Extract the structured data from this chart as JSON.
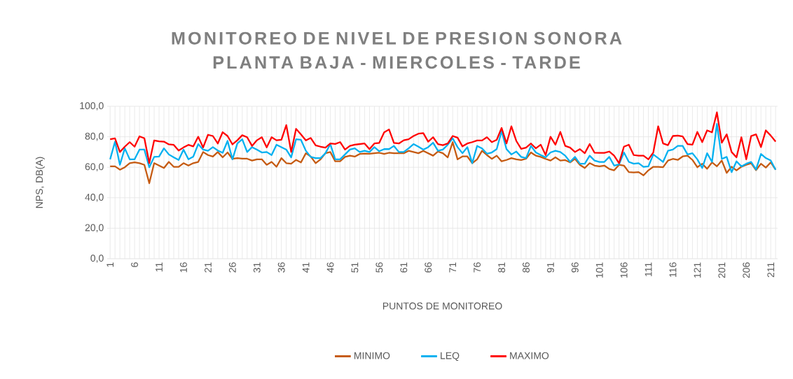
{
  "chart_data": {
    "type": "line",
    "title": "MONITOREO DE NIVEL DE PRESION SONORA PLANTA BAJA - MIERCOLES - TARDE",
    "xlabel": "PUNTOS DE MONITOREO",
    "ylabel": "NPS, DB(A)",
    "categories": [
      "1",
      null,
      null,
      null,
      null,
      "6",
      null,
      null,
      null,
      null,
      "11",
      null,
      null,
      null,
      null,
      "16",
      null,
      null,
      null,
      null,
      "21",
      null,
      null,
      null,
      null,
      "26",
      null,
      null,
      null,
      null,
      "31",
      null,
      null,
      null,
      null,
      "36",
      null,
      null,
      null,
      null,
      "41",
      null,
      null,
      null,
      null,
      "46",
      null,
      null,
      null,
      null,
      "51",
      null,
      null,
      null,
      null,
      "56",
      null,
      null,
      null,
      null,
      "61",
      null,
      null,
      null,
      null,
      "66",
      null,
      null,
      null,
      null,
      "71",
      null,
      null,
      null,
      null,
      "76",
      null,
      null,
      null,
      null,
      "81",
      null,
      null,
      null,
      null,
      "86",
      null,
      null,
      null,
      null,
      "91",
      null,
      null,
      null,
      null,
      "96",
      null,
      null,
      null,
      null,
      "101",
      null,
      null,
      null,
      null,
      "106",
      null,
      null,
      null,
      null,
      "111",
      null,
      null,
      null,
      null,
      "116",
      null,
      null,
      null,
      null,
      "121",
      null,
      null,
      null,
      null,
      "201",
      null,
      null,
      null,
      null,
      "206",
      null,
      null,
      null,
      null,
      "211",
      null
    ],
    "series": [
      {
        "name": "MINIMO",
        "color": "#c55a11",
        "values": [
          60.6,
          60.6,
          58.4,
          60,
          62.7,
          63.2,
          62.7,
          61.6,
          49.5,
          62.7,
          61.1,
          59.5,
          63.5,
          60.3,
          60.3,
          62.7,
          61.1,
          62.7,
          63.5,
          70,
          68,
          67,
          70,
          66.5,
          69.7,
          65.5,
          66,
          65.6,
          65.6,
          64.4,
          65.2,
          65.2,
          61.6,
          63.5,
          60.3,
          66,
          62.7,
          62.3,
          64.8,
          63.2,
          69.2,
          67,
          62.7,
          65.2,
          69.2,
          70,
          63.9,
          63.9,
          66.8,
          67.6,
          67,
          68.7,
          69,
          68.9,
          69.2,
          69.5,
          68.7,
          69.5,
          69.2,
          69.2,
          69.2,
          70.8,
          70,
          69.2,
          70.8,
          69.2,
          67.6,
          70.3,
          69.2,
          66.5,
          76.5,
          65.2,
          67.1,
          67.1,
          62.7,
          65.2,
          70.8,
          68,
          65.5,
          67.6,
          63.9,
          64.8,
          66,
          65.2,
          64.7,
          65.6,
          69.7,
          67.6,
          66.8,
          65.5,
          64.4,
          66.5,
          64.4,
          64.7,
          63.2,
          65.5,
          61.6,
          59.5,
          62.7,
          61.1,
          60.6,
          61.1,
          58.9,
          58,
          61.6,
          61.1,
          56.8,
          56.6,
          56.8,
          54.7,
          58,
          60.3,
          60.3,
          60,
          64.4,
          65.5,
          64.8,
          67.1,
          67.6,
          64.8,
          60,
          62.3,
          59,
          63.2,
          60.6,
          64.4,
          56.3,
          60.3,
          58,
          60.3,
          61.6,
          62.7,
          58.1,
          62.3,
          59.8,
          63.2,
          58.4
        ]
      },
      {
        "name": "LEQ",
        "color": "#00b0f0",
        "values": [
          65.2,
          76.8,
          61.6,
          72.4,
          65.2,
          65.2,
          71.6,
          71.6,
          60,
          66.8,
          67,
          72.4,
          68.4,
          66.5,
          64.8,
          71.6,
          65.2,
          67,
          75.2,
          71.6,
          70.8,
          73.2,
          71,
          69.5,
          77.3,
          65.2,
          75.6,
          78.4,
          70,
          73.2,
          71.6,
          69.7,
          70,
          68,
          74.8,
          73.2,
          71.6,
          66.5,
          78.4,
          78,
          70.8,
          66.8,
          66,
          66,
          69.2,
          75.2,
          65.2,
          65.2,
          68.4,
          71.6,
          72.4,
          70,
          70.8,
          70,
          73.2,
          70.5,
          71.9,
          71.9,
          74,
          70,
          70,
          72.4,
          75.2,
          73.5,
          71.6,
          73.2,
          76.1,
          70.8,
          71.6,
          74.8,
          79,
          73.2,
          69.2,
          73.2,
          62.7,
          74,
          72.4,
          68.9,
          69.7,
          71.9,
          83.7,
          71.9,
          68.4,
          70.3,
          66.8,
          66,
          74,
          69.7,
          68,
          66.5,
          69.7,
          70.8,
          70,
          67.6,
          63.5,
          66.8,
          62.3,
          62.3,
          67.6,
          64.4,
          63.5,
          63.5,
          66.8,
          61.1,
          61.9,
          69.7,
          63.5,
          62.3,
          62.7,
          60.3,
          60.6,
          68.4,
          66,
          63.5,
          70.8,
          71.6,
          74,
          74,
          68.4,
          69.2,
          65.2,
          59.5,
          69.2,
          63.5,
          88.5,
          65.5,
          66.8,
          56.8,
          63.9,
          60.6,
          62.3,
          63.5,
          58.5,
          68.7,
          66,
          64.4,
          58.4
        ]
      },
      {
        "name": "MAXIMO",
        "color": "#ff0000",
        "values": [
          78.4,
          79,
          70,
          73.5,
          76.5,
          73.5,
          80.3,
          79,
          62.7,
          77.6,
          77,
          76.8,
          75,
          74.7,
          71,
          73,
          74.7,
          73.7,
          80,
          73,
          81.3,
          80.5,
          75.6,
          83,
          80.5,
          75,
          77.7,
          81,
          79.7,
          74,
          77.7,
          79.7,
          73,
          79.7,
          77.7,
          78,
          87.7,
          70,
          85.2,
          81.5,
          77.6,
          79.2,
          74.4,
          73.5,
          72.9,
          75.6,
          75.3,
          76.5,
          71.6,
          74,
          74.8,
          75.2,
          75.6,
          71.9,
          75.6,
          76,
          82.9,
          84.8,
          76,
          75.6,
          77.7,
          78.4,
          80.5,
          82,
          82.4,
          76.8,
          79.7,
          75.2,
          74.5,
          75.6,
          80.5,
          79.4,
          73.7,
          75.6,
          76.5,
          77.6,
          77.6,
          79.7,
          76.5,
          78,
          85.8,
          75.6,
          86.9,
          77.3,
          72.1,
          72.9,
          75.6,
          72.4,
          74.8,
          68,
          80,
          74.8,
          83.2,
          74,
          72.9,
          70,
          71.9,
          69.2,
          75.2,
          69.5,
          69.4,
          69.4,
          70.3,
          67.6,
          62.7,
          73.5,
          74.8,
          68,
          67.6,
          67.6,
          65.2,
          69.7,
          86.9,
          75.6,
          74.5,
          80.5,
          80.8,
          80.2,
          75.2,
          74.8,
          83.2,
          76.5,
          84.2,
          82.9,
          96,
          76.1,
          81.6,
          70,
          66.5,
          79.7,
          65.2,
          80.5,
          81.6,
          73.2,
          84.2,
          80.8,
          76.8
        ]
      }
    ],
    "ylim": [
      0,
      100
    ],
    "yticks": [
      {
        "value": 0,
        "label": "0,0"
      },
      {
        "value": 20,
        "label": "20,0"
      },
      {
        "value": 40,
        "label": "40,0"
      },
      {
        "value": 60,
        "label": "60,0"
      },
      {
        "value": 80,
        "label": "80,0"
      },
      {
        "value": 100,
        "label": "100,0"
      }
    ],
    "grid": true,
    "legend": "bottom"
  }
}
